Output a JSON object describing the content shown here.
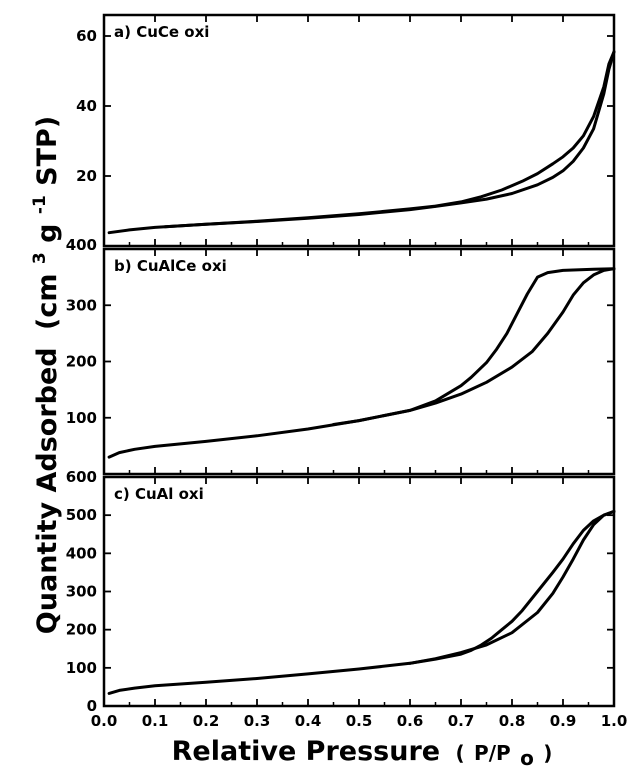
{
  "chart_data": [
    {
      "type": "line",
      "title": "a) CuCe oxi",
      "xlim": [
        0.0,
        1.0
      ],
      "ylim": [
        0,
        66
      ],
      "yticks": [
        20,
        40,
        60
      ],
      "series": [
        {
          "x": [
            0.01,
            0.05,
            0.1,
            0.2,
            0.3,
            0.4,
            0.5,
            0.6,
            0.65,
            0.7,
            0.75,
            0.8,
            0.85,
            0.88,
            0.9,
            0.92,
            0.94,
            0.96,
            0.98,
            0.99,
            1.0
          ],
          "y": [
            3.8,
            4.6,
            5.3,
            6.2,
            7.0,
            7.9,
            9.0,
            10.4,
            11.3,
            12.3,
            13.4,
            15.0,
            17.5,
            19.6,
            21.5,
            24.2,
            28.0,
            33.5,
            43.5,
            50.5,
            55.5
          ]
        },
        {
          "x": [
            1.0,
            0.99,
            0.98,
            0.96,
            0.94,
            0.92,
            0.9,
            0.88,
            0.85,
            0.82,
            0.78,
            0.74,
            0.7,
            0.65,
            0.6,
            0.5,
            0.4,
            0.3,
            0.2,
            0.12
          ],
          "y": [
            55.5,
            52.0,
            45.5,
            37.0,
            31.5,
            28.0,
            25.5,
            23.5,
            20.7,
            18.5,
            16.0,
            14.1,
            12.6,
            11.4,
            10.6,
            9.2,
            8.1,
            7.1,
            6.2,
            5.5
          ]
        }
      ]
    },
    {
      "type": "line",
      "title": "b) CuAlCe oxi",
      "xlim": [
        0.0,
        1.0
      ],
      "ylim": [
        0,
        400
      ],
      "yticks": [
        100,
        200,
        300
      ],
      "series": [
        {
          "x": [
            0.01,
            0.03,
            0.06,
            0.1,
            0.2,
            0.3,
            0.4,
            0.5,
            0.6,
            0.65,
            0.7,
            0.75,
            0.8,
            0.84,
            0.87,
            0.9,
            0.92,
            0.94,
            0.96,
            0.98,
            1.0
          ],
          "y": [
            30,
            38,
            44,
            49,
            58,
            68,
            80,
            95,
            113,
            126,
            142,
            163,
            190,
            218,
            250,
            288,
            318,
            340,
            354,
            362,
            365
          ]
        },
        {
          "x": [
            1.0,
            0.96,
            0.9,
            0.87,
            0.85,
            0.83,
            0.81,
            0.79,
            0.77,
            0.75,
            0.72,
            0.7,
            0.65,
            0.6,
            0.55,
            0.5,
            0.45
          ],
          "y": [
            365,
            364,
            362,
            358,
            350,
            320,
            285,
            250,
            222,
            198,
            172,
            157,
            130,
            113,
            104,
            95,
            88
          ]
        }
      ]
    },
    {
      "type": "line",
      "title": "c) CuAl oxi",
      "xlim": [
        0.0,
        1.0
      ],
      "ylim": [
        0,
        600
      ],
      "yticks": [
        0,
        100,
        200,
        300,
        400,
        500
      ],
      "series": [
        {
          "x": [
            0.01,
            0.03,
            0.06,
            0.1,
            0.2,
            0.3,
            0.4,
            0.5,
            0.6,
            0.65,
            0.7,
            0.75,
            0.8,
            0.85,
            0.88,
            0.9,
            0.92,
            0.94,
            0.96,
            0.98,
            1.0
          ],
          "y": [
            33,
            41,
            47,
            53,
            62,
            72,
            84,
            97,
            112,
            124,
            140,
            160,
            192,
            245,
            295,
            338,
            385,
            435,
            475,
            500,
            510
          ]
        },
        {
          "x": [
            1.0,
            0.98,
            0.96,
            0.94,
            0.92,
            0.9,
            0.88,
            0.85,
            0.82,
            0.8,
            0.78,
            0.76,
            0.74,
            0.72,
            0.7,
            0.65,
            0.6
          ],
          "y": [
            510,
            500,
            485,
            460,
            425,
            385,
            350,
            300,
            250,
            222,
            200,
            178,
            160,
            146,
            136,
            123,
            112
          ]
        }
      ]
    }
  ],
  "xaxis": {
    "ticks": [
      0.0,
      0.1,
      0.2,
      0.3,
      0.4,
      0.5,
      0.6,
      0.7,
      0.8,
      0.9,
      1.0
    ],
    "tick_labels": [
      "0.0",
      "0.1",
      "0.2",
      "0.3",
      "0.4",
      "0.5",
      "0.6",
      "0.7",
      "0.8",
      "0.9",
      "1.0"
    ],
    "label": "Relative Pressure",
    "label_suffix_open": "(",
    "label_p": "P/P",
    "label_sub": "o",
    "label_suffix_close": ")"
  },
  "yaxis": {
    "label": "Quantity Adsorbed",
    "unit_open": "(cm",
    "unit_sup1": "3",
    "unit_mid": "g",
    "unit_sup2": "-1",
    "unit_end": " STP)"
  },
  "bottom_panel_boundary_labels": [
    "400",
    "600"
  ]
}
